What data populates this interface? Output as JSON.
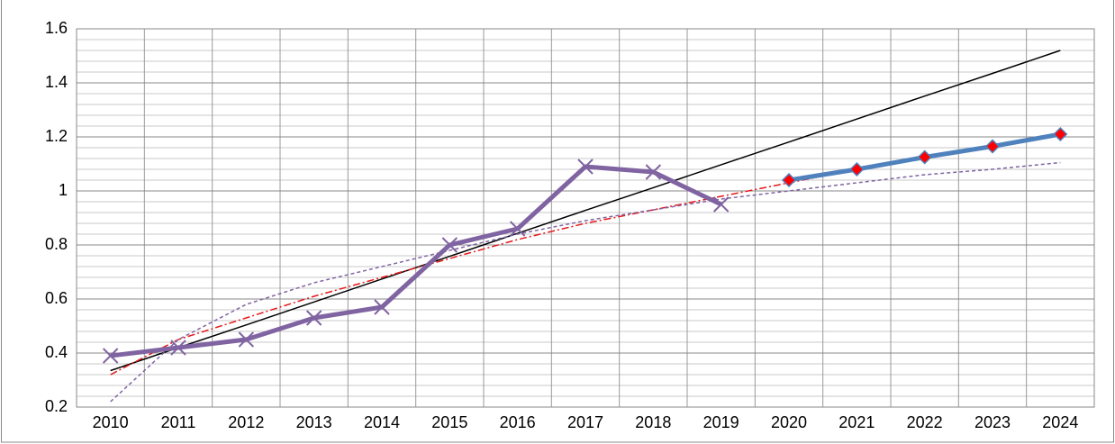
{
  "chart_data": {
    "type": "line",
    "categories": [
      "2010",
      "2011",
      "2012",
      "2013",
      "2014",
      "2015",
      "2016",
      "2017",
      "2018",
      "2019",
      "2020",
      "2021",
      "2022",
      "2023",
      "2024"
    ],
    "ylim": [
      0.2,
      1.6
    ],
    "yticks": [
      0.2,
      0.4,
      0.6,
      0.8,
      1,
      1.2,
      1.4,
      1.6
    ],
    "grid": true,
    "minor_grid_step": 0.04,
    "series": [
      {
        "color": "#000000",
        "width": 1.5,
        "dash": "none",
        "marker": "none",
        "values": [
          0.335,
          0.42,
          0.504,
          0.589,
          0.674,
          0.758,
          0.843,
          0.928,
          1.012,
          1.097,
          1.181,
          1.266,
          1.351,
          1.435,
          1.52
        ]
      },
      {
        "color": "#e41a1c",
        "width": 1.5,
        "dash": "8 3 2 3",
        "marker": "none",
        "values": [
          0.32,
          0.45,
          0.53,
          0.61,
          0.68,
          0.75,
          0.82,
          0.88,
          0.93,
          0.98,
          1.03,
          1.08,
          1.12,
          1.17,
          1.21
        ]
      },
      {
        "color": "#8064a2",
        "width": 1.5,
        "dash": "4 3",
        "marker": "none",
        "values": [
          0.22,
          0.45,
          0.58,
          0.66,
          0.72,
          0.78,
          0.84,
          0.89,
          0.93,
          0.97,
          1.0,
          1.03,
          1.06,
          1.08,
          1.105
        ]
      },
      {
        "color": "#8064a2",
        "width": 5,
        "dash": "none",
        "marker": "x",
        "values": [
          0.39,
          0.42,
          0.45,
          0.53,
          0.57,
          0.8,
          0.86,
          1.09,
          1.07,
          0.95,
          null,
          null,
          null,
          null,
          null
        ]
      },
      {
        "color": "#4f81bd",
        "width": 5,
        "dash": "none",
        "marker": "diamond",
        "marker_color": "#ff0000",
        "values": [
          null,
          null,
          null,
          null,
          null,
          null,
          null,
          null,
          null,
          null,
          1.04,
          1.08,
          1.125,
          1.165,
          1.21
        ]
      }
    ]
  }
}
